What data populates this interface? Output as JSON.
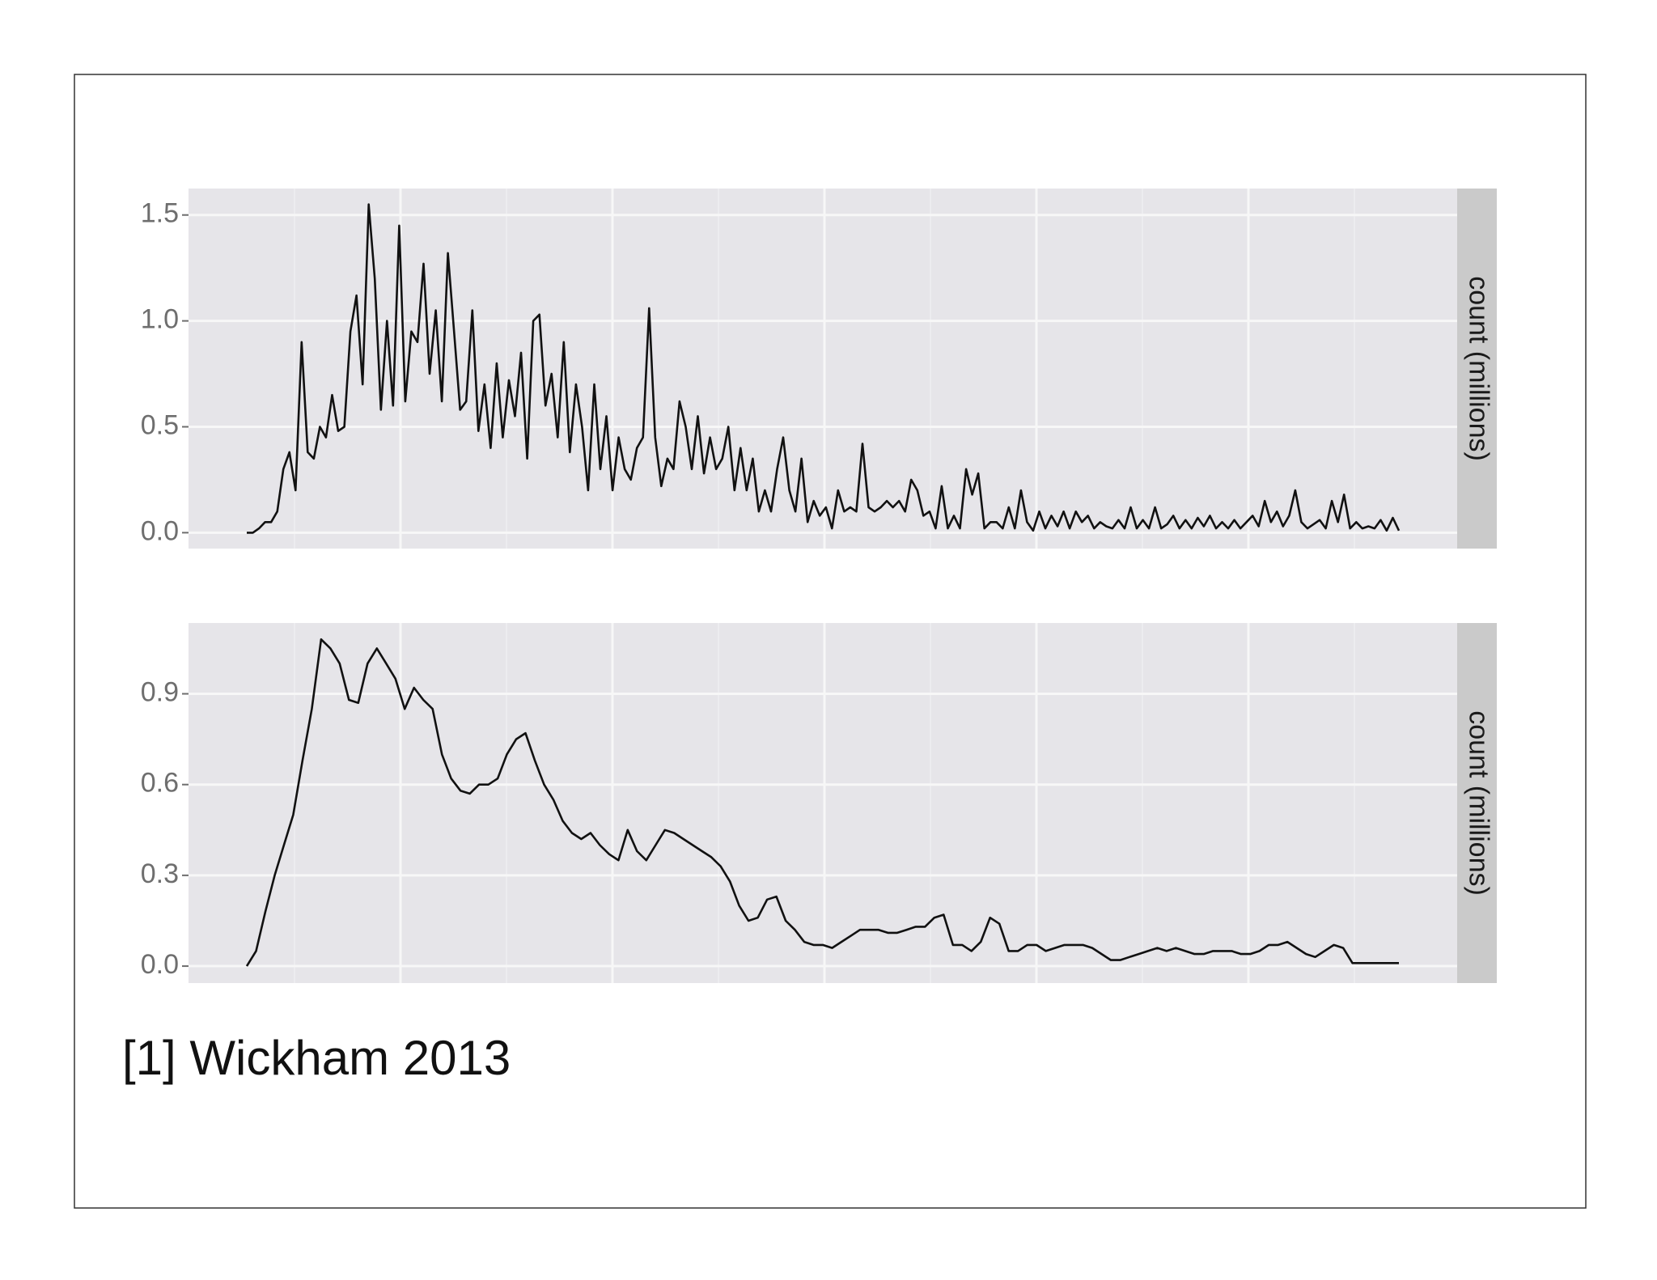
{
  "caption": "[1] Wickham 2013",
  "chart_data": [
    {
      "type": "line",
      "facet_label": "count (millions)",
      "color": "#111111",
      "grid": true,
      "ylim": [
        -0.075,
        1.625
      ],
      "yticks": [
        {
          "value": 0,
          "label": "0.0"
        },
        0.5,
        {
          "value": 1,
          "label": "1.0"
        },
        1.5
      ],
      "values": [
        0,
        0,
        0.02,
        0.05,
        0.05,
        0.1,
        0.3,
        0.38,
        0.2,
        0.9,
        0.38,
        0.35,
        0.5,
        0.45,
        0.65,
        0.48,
        0.5,
        0.95,
        1.12,
        0.7,
        1.55,
        1.2,
        0.58,
        1.0,
        0.6,
        1.45,
        0.62,
        0.95,
        0.9,
        1.27,
        0.75,
        1.05,
        0.62,
        1.32,
        0.95,
        0.58,
        0.62,
        1.05,
        0.48,
        0.7,
        0.4,
        0.8,
        0.45,
        0.72,
        0.55,
        0.85,
        0.35,
        1.0,
        1.03,
        0.6,
        0.75,
        0.45,
        0.9,
        0.38,
        0.7,
        0.5,
        0.2,
        0.7,
        0.3,
        0.55,
        0.2,
        0.45,
        0.3,
        0.25,
        0.4,
        0.45,
        1.06,
        0.45,
        0.22,
        0.35,
        0.3,
        0.62,
        0.5,
        0.3,
        0.55,
        0.28,
        0.45,
        0.3,
        0.35,
        0.5,
        0.2,
        0.4,
        0.2,
        0.35,
        0.1,
        0.2,
        0.1,
        0.3,
        0.45,
        0.2,
        0.1,
        0.35,
        0.05,
        0.15,
        0.08,
        0.12,
        0.02,
        0.2,
        0.1,
        0.12,
        0.1,
        0.42,
        0.12,
        0.1,
        0.12,
        0.15,
        0.12,
        0.15,
        0.1,
        0.25,
        0.2,
        0.08,
        0.1,
        0.02,
        0.22,
        0.02,
        0.08,
        0.02,
        0.3,
        0.18,
        0.28,
        0.02,
        0.05,
        0.05,
        0.02,
        0.12,
        0.02,
        0.2,
        0.05,
        0.01,
        0.1,
        0.02,
        0.08,
        0.03,
        0.1,
        0.02,
        0.1,
        0.05,
        0.08,
        0.02,
        0.05,
        0.03,
        0.02,
        0.06,
        0.02,
        0.12,
        0.02,
        0.06,
        0.02,
        0.12,
        0.02,
        0.04,
        0.08,
        0.02,
        0.06,
        0.02,
        0.07,
        0.03,
        0.08,
        0.02,
        0.05,
        0.02,
        0.06,
        0.02,
        0.05,
        0.08,
        0.03,
        0.15,
        0.05,
        0.1,
        0.03,
        0.08,
        0.2,
        0.05,
        0.02,
        0.04,
        0.06,
        0.02,
        0.15,
        0.05,
        0.18,
        0.02,
        0.05,
        0.02,
        0.03,
        0.02,
        0.06,
        0.01,
        0.07,
        0.01
      ]
    },
    {
      "type": "line",
      "facet_label": "count (millions)",
      "color": "#111111",
      "grid": true,
      "ylim": [
        -0.056,
        1.134
      ],
      "yticks": [
        {
          "value": 0,
          "label": "0.0"
        },
        0.3,
        0.6,
        0.9
      ],
      "values": [
        0,
        0.05,
        0.18,
        0.3,
        0.4,
        0.5,
        0.68,
        0.85,
        1.08,
        1.05,
        1.0,
        0.88,
        0.87,
        1.0,
        1.05,
        1.0,
        0.95,
        0.85,
        0.92,
        0.88,
        0.85,
        0.7,
        0.62,
        0.58,
        0.57,
        0.6,
        0.6,
        0.62,
        0.7,
        0.75,
        0.77,
        0.68,
        0.6,
        0.55,
        0.48,
        0.44,
        0.42,
        0.44,
        0.4,
        0.37,
        0.35,
        0.45,
        0.38,
        0.35,
        0.4,
        0.45,
        0.44,
        0.42,
        0.4,
        0.38,
        0.36,
        0.33,
        0.28,
        0.2,
        0.15,
        0.16,
        0.22,
        0.23,
        0.15,
        0.12,
        0.08,
        0.07,
        0.07,
        0.06,
        0.08,
        0.1,
        0.12,
        0.12,
        0.12,
        0.11,
        0.11,
        0.12,
        0.13,
        0.13,
        0.16,
        0.17,
        0.07,
        0.07,
        0.05,
        0.08,
        0.16,
        0.14,
        0.05,
        0.05,
        0.07,
        0.07,
        0.05,
        0.06,
        0.07,
        0.07,
        0.07,
        0.06,
        0.04,
        0.02,
        0.02,
        0.03,
        0.04,
        0.05,
        0.06,
        0.05,
        0.06,
        0.05,
        0.04,
        0.04,
        0.05,
        0.05,
        0.05,
        0.04,
        0.04,
        0.05,
        0.07,
        0.07,
        0.08,
        0.06,
        0.04,
        0.03,
        0.05,
        0.07,
        0.06,
        0.01,
        0.01,
        0.01,
        0.01,
        0.01,
        0.01
      ]
    }
  ]
}
